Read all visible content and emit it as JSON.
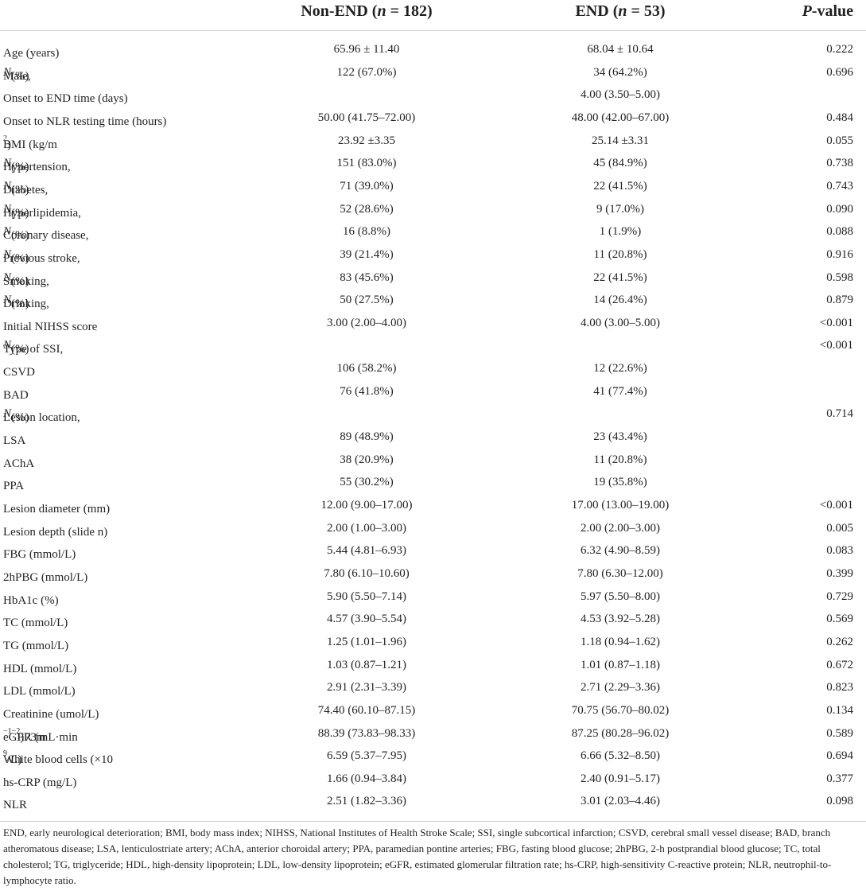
{
  "header": {
    "col0": "",
    "col1_pre": "Non-END (",
    "col1_var": "n",
    "col1_post": " = 182)",
    "col2_pre": "END (",
    "col2_var": "n",
    "col2_post": " = 53)",
    "col3_var": "P",
    "col3_post": "-value"
  },
  "rows": [
    {
      "label": "Age (years)",
      "nonend": "65.96 ± 11.40",
      "end": "68.04 ± 10.64",
      "p": "0.222"
    },
    {
      "label": "Male, ",
      "label_italic": "N",
      "label_post": " (%)",
      "nonend": "122 (67.0%)",
      "end": "34 (64.2%)",
      "p": "0.696"
    },
    {
      "label": "Onset to END time (days)",
      "nonend": "",
      "end": "4.00 (3.50–5.00)",
      "p": ""
    },
    {
      "label": "Onset to NLR testing time (hours)",
      "nonend": "50.00 (41.75–72.00)",
      "end": "48.00 (42.00–67.00)",
      "p": "0.484"
    },
    {
      "label": "BMI (kg/m",
      "label_sup": "2",
      "label_post": ")",
      "nonend": "23.92 ±3.35",
      "end": "25.14 ±3.31",
      "p": "0.055"
    },
    {
      "label": "Hypertension, ",
      "label_italic": "N",
      "label_post": " (%)",
      "nonend": "151 (83.0%)",
      "end": "45 (84.9%)",
      "p": "0.738"
    },
    {
      "label": "Diabetes, ",
      "label_italic": "N",
      "label_post": " (%)",
      "nonend": "71 (39.0%)",
      "end": "22 (41.5%)",
      "p": "0.743"
    },
    {
      "label": "Hyperlipidemia, ",
      "label_italic": "N",
      "label_post": " (%)",
      "nonend": "52 (28.6%)",
      "end": "9 (17.0%)",
      "p": "0.090"
    },
    {
      "label": "Coronary disease, ",
      "label_italic": "N",
      "label_post": " (%)",
      "nonend": "16 (8.8%)",
      "end": "1 (1.9%)",
      "p": "0.088"
    },
    {
      "label": "Previous stroke, ",
      "label_italic": "N",
      "label_post": " (%)",
      "nonend": "39 (21.4%)",
      "end": "11 (20.8%)",
      "p": "0.916"
    },
    {
      "label": "Smoking, ",
      "label_italic": "N",
      "label_post": " (%)",
      "nonend": "83 (45.6%)",
      "end": "22 (41.5%)",
      "p": "0.598"
    },
    {
      "label": "Drinking, ",
      "label_italic": "N",
      "label_post": " (%)",
      "nonend": "50 (27.5%)",
      "end": "14 (26.4%)",
      "p": "0.879"
    },
    {
      "label": "Initial NIHSS score",
      "nonend": "3.00 (2.00–4.00)",
      "end": "4.00 (3.00–5.00)",
      "p": "<0.001"
    },
    {
      "label": "Type of SSI, ",
      "label_italic": "N",
      "label_post": " (%)",
      "nonend": "",
      "end": "",
      "p": "<0.001"
    },
    {
      "label": "CSVD",
      "nonend": "106 (58.2%)",
      "end": "12 (22.6%)",
      "p": ""
    },
    {
      "label": "BAD",
      "nonend": "76 (41.8%)",
      "end": "41 (77.4%)",
      "p": ""
    },
    {
      "label": "Lesion location, ",
      "label_italic": "N",
      "label_post": " (%)",
      "nonend": "",
      "end": "",
      "p": "0.714"
    },
    {
      "label": "LSA",
      "nonend": "89 (48.9%)",
      "end": "23 (43.4%)",
      "p": ""
    },
    {
      "label": "AChA",
      "nonend": "38 (20.9%)",
      "end": "11 (20.8%)",
      "p": ""
    },
    {
      "label": "PPA",
      "nonend": "55 (30.2%)",
      "end": "19 (35.8%)",
      "p": ""
    },
    {
      "label": "Lesion diameter (mm)",
      "nonend": "12.00 (9.00–17.00)",
      "end": "17.00 (13.00–19.00)",
      "p": "<0.001"
    },
    {
      "label": "Lesion depth (slide n)",
      "nonend": "2.00 (1.00–3.00)",
      "end": "2.00 (2.00–3.00)",
      "p": "0.005"
    },
    {
      "label": "FBG (mmol/L)",
      "nonend": "5.44 (4.81–6.93)",
      "end": "6.32 (4.90–8.59)",
      "p": "0.083"
    },
    {
      "label": "2hPBG (mmol/L)",
      "nonend": "7.80 (6.10–10.60)",
      "end": "7.80 (6.30–12.00)",
      "p": "0.399"
    },
    {
      "label": "HbA1c (%)",
      "nonend": "5.90 (5.50–7.14)",
      "end": "5.97 (5.50–8.00)",
      "p": "0.729"
    },
    {
      "label": "TC (mmol/L)",
      "nonend": "4.57 (3.90–5.54)",
      "end": "4.53 (3.92–5.28)",
      "p": "0.569"
    },
    {
      "label": "TG (mmol/L)",
      "nonend": "1.25 (1.01–1.96)",
      "end": "1.18 (0.94–1.62)",
      "p": "0.262"
    },
    {
      "label": "HDL (mmol/L)",
      "nonend": "1.03 (0.87–1.21)",
      "end": "1.01 (0.87–1.18)",
      "p": "0.672"
    },
    {
      "label": "LDL (mmol/L)",
      "nonend": "2.91 (2.31–3.39)",
      "end": "2.71 (2.29–3.36)",
      "p": "0.823"
    },
    {
      "label": "Creatinine (umol/L)",
      "nonend": "74.40 (60.10–87.15)",
      "end": "70.75 (56.70–80.02)",
      "p": "0.134"
    },
    {
      "label": "eGFR (mL·min",
      "label_sup": "−1",
      "label_post": "·1.73m",
      "label_sup2": "−2",
      "label_post2": ")",
      "nonend": "88.39 (73.83–98.33)",
      "end": "87.25 (80.28–96.02)",
      "p": "0.589"
    },
    {
      "label": "White blood cells (×10",
      "label_sup": "9",
      "label_post": "/L)",
      "nonend": "6.59 (5.37–7.95)",
      "end": "6.66 (5.32–8.50)",
      "p": "0.694"
    },
    {
      "label": "hs-CRP (mg/L)",
      "nonend": "1.66 (0.94–3.84)",
      "end": "2.40 (0.91–5.17)",
      "p": "0.377"
    },
    {
      "label": "NLR",
      "nonend": "2.51 (1.82–3.36)",
      "end": "3.01 (2.03–4.46)",
      "p": "0.098"
    }
  ],
  "footnote": "END, early neurological deterioration; BMI, body mass index; NIHSS, National Institutes of Health Stroke Scale; SSI, single subcortical infarction; CSVD, cerebral small vessel disease; BAD, branch atheromatous disease; LSA, lenticulostriate artery; AChA, anterior choroidal artery; PPA, paramedian pontine arteries; FBG, fasting blood glucose; 2hPBG, 2-h postprandial blood glucose; TC, total cholesterol; TG, triglyceride; HDL, high-density lipoprotein; LDL, low-density lipoprotein; eGFR, estimated glomerular filtration rate; hs-CRP, high-sensitivity C-reactive protein; NLR, neutrophil-to-lymphocyte ratio."
}
